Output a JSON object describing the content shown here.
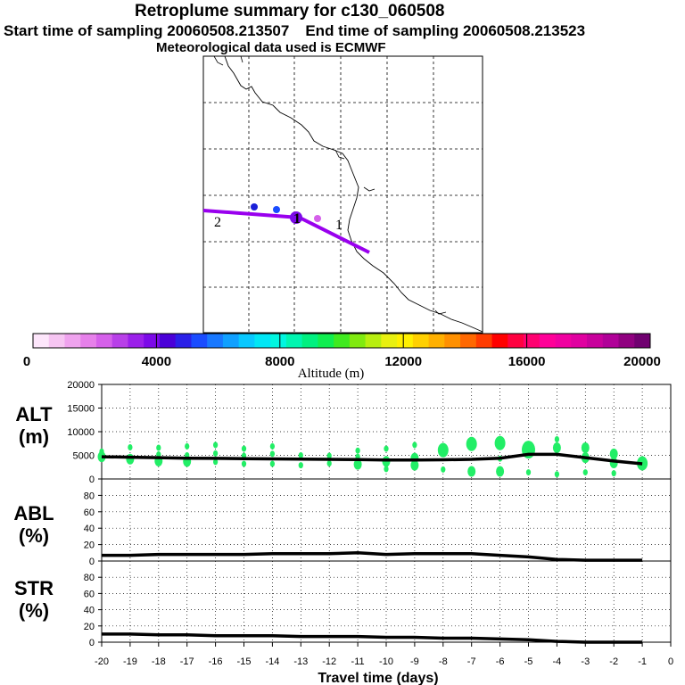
{
  "header": {
    "title": "Retroplume summary for c130_060508",
    "start_label": "Start time of sampling 20060508.213507",
    "end_label": "End time of sampling 20060508.213523",
    "met_label": "Meteorological data used is ECMWF"
  },
  "colors": {
    "plume_line": "#9900ee",
    "scatter_green": "#22ee66",
    "mean_line": "#000000"
  },
  "map": {
    "markers": [
      {
        "label": "2",
        "kind": "text"
      },
      {
        "label": "1",
        "kind": "text"
      },
      {
        "label": "1",
        "kind": "text"
      },
      {
        "label": "1",
        "kind": "text"
      }
    ]
  },
  "colorbar": {
    "ticks": [
      "0",
      "4000",
      "8000",
      "12000",
      "16000",
      "20000"
    ],
    "label": "Altitude (m)",
    "colors": [
      "#fde6fb",
      "#f6c5f2",
      "#efa3ee",
      "#e680ea",
      "#d560ea",
      "#b840e8",
      "#9b20ea",
      "#7c0ae8",
      "#4a00d8",
      "#2a20e8",
      "#1a4cff",
      "#1878ff",
      "#10a0ff",
      "#08c8ff",
      "#00e6f5",
      "#00f6e0",
      "#00f5b0",
      "#00f080",
      "#10ee50",
      "#40ea20",
      "#80ea10",
      "#b8ee10",
      "#e8f010",
      "#fff000",
      "#ffd000",
      "#ffb000",
      "#ff9000",
      "#ff6800",
      "#ff3c00",
      "#ff0000",
      "#ff0040",
      "#ff0070",
      "#ff0098",
      "#f000a0",
      "#e000a0",
      "#c8009c",
      "#b00098",
      "#900080",
      "#700070"
    ]
  },
  "chart_data": [
    {
      "type": "scatter",
      "panel": "ALT",
      "ylabel": "ALT\n(m)",
      "ylabel_lines": [
        "ALT",
        "(m)"
      ],
      "ylim": [
        0,
        20000
      ],
      "yticks": [
        "0",
        "5000",
        "10000",
        "15000",
        "20000"
      ],
      "mean_series": {
        "x": [
          -20,
          -19,
          -18,
          -17,
          -16,
          -15,
          -14,
          -13,
          -12,
          -11,
          -10,
          -9,
          -8,
          -7,
          -6,
          -5,
          -4,
          -3,
          -2,
          -1
        ],
        "y": [
          4700,
          4600,
          4500,
          4400,
          4350,
          4300,
          4250,
          4200,
          4150,
          4100,
          4000,
          4000,
          4050,
          4150,
          4400,
          5200,
          5200,
          4500,
          3800,
          3200
        ]
      },
      "points": [
        {
          "x": -20,
          "y": 4700,
          "size": "m"
        },
        {
          "x": -20,
          "y": 5800,
          "size": "s"
        },
        {
          "x": -19,
          "y": 4200,
          "size": "m"
        },
        {
          "x": -19,
          "y": 6700,
          "size": "s"
        },
        {
          "x": -18,
          "y": 3800,
          "size": "m"
        },
        {
          "x": -18,
          "y": 5200,
          "size": "s"
        },
        {
          "x": -18,
          "y": 6600,
          "size": "s"
        },
        {
          "x": -17,
          "y": 3700,
          "size": "m"
        },
        {
          "x": -17,
          "y": 5000,
          "size": "s"
        },
        {
          "x": -17,
          "y": 6900,
          "size": "s"
        },
        {
          "x": -16,
          "y": 3600,
          "size": "s"
        },
        {
          "x": -16,
          "y": 5400,
          "size": "s"
        },
        {
          "x": -16,
          "y": 7200,
          "size": "s"
        },
        {
          "x": -15,
          "y": 3200,
          "size": "s"
        },
        {
          "x": -15,
          "y": 4900,
          "size": "s"
        },
        {
          "x": -15,
          "y": 6400,
          "size": "s"
        },
        {
          "x": -14,
          "y": 3200,
          "size": "s"
        },
        {
          "x": -14,
          "y": 5300,
          "size": "s"
        },
        {
          "x": -14,
          "y": 6900,
          "size": "s"
        },
        {
          "x": -13,
          "y": 2900,
          "size": "s"
        },
        {
          "x": -13,
          "y": 5000,
          "size": "s"
        },
        {
          "x": -12,
          "y": 3300,
          "size": "s"
        },
        {
          "x": -12,
          "y": 4900,
          "size": "s"
        },
        {
          "x": -11,
          "y": 3100,
          "size": "m"
        },
        {
          "x": -11,
          "y": 4700,
          "size": "s"
        },
        {
          "x": -11,
          "y": 6000,
          "size": "s"
        },
        {
          "x": -10,
          "y": 2100,
          "size": "s"
        },
        {
          "x": -10,
          "y": 3700,
          "size": "m"
        },
        {
          "x": -10,
          "y": 6400,
          "size": "s"
        },
        {
          "x": -9,
          "y": 2900,
          "size": "m"
        },
        {
          "x": -9,
          "y": 4400,
          "size": "m"
        },
        {
          "x": -9,
          "y": 7200,
          "size": "s"
        },
        {
          "x": -8,
          "y": 2000,
          "size": "s"
        },
        {
          "x": -8,
          "y": 6100,
          "size": "l"
        },
        {
          "x": -7,
          "y": 1600,
          "size": "m"
        },
        {
          "x": -7,
          "y": 7400,
          "size": "l"
        },
        {
          "x": -6,
          "y": 1600,
          "size": "m"
        },
        {
          "x": -6,
          "y": 4300,
          "size": "s"
        },
        {
          "x": -6,
          "y": 7600,
          "size": "l"
        },
        {
          "x": -5,
          "y": 1400,
          "size": "s"
        },
        {
          "x": -5,
          "y": 6200,
          "size": "xl"
        },
        {
          "x": -4,
          "y": 1000,
          "size": "s"
        },
        {
          "x": -4,
          "y": 6600,
          "size": "m"
        },
        {
          "x": -4,
          "y": 8400,
          "size": "s"
        },
        {
          "x": -3,
          "y": 1400,
          "size": "s"
        },
        {
          "x": -3,
          "y": 4500,
          "size": "m"
        },
        {
          "x": -3,
          "y": 6600,
          "size": "m"
        },
        {
          "x": -2,
          "y": 1200,
          "size": "s"
        },
        {
          "x": -2,
          "y": 3400,
          "size": "m"
        },
        {
          "x": -2,
          "y": 5300,
          "size": "m"
        },
        {
          "x": -1,
          "y": 3300,
          "size": "l"
        }
      ]
    },
    {
      "type": "line",
      "panel": "ABL",
      "ylabel": "ABL\n(%)",
      "ylabel_lines": [
        "ABL",
        "(%)"
      ],
      "ylim": [
        0,
        100
      ],
      "yticks": [
        "0",
        "20",
        "40",
        "60",
        "80"
      ],
      "x": [
        -20,
        -19,
        -18,
        -17,
        -16,
        -15,
        -14,
        -13,
        -12,
        -11,
        -10,
        -9,
        -8,
        -7,
        -6,
        -5,
        -4,
        -3,
        -2,
        -1
      ],
      "y": [
        7,
        7,
        8,
        8,
        8,
        8,
        9,
        9,
        9,
        10,
        8,
        9,
        9,
        9,
        7,
        5,
        2,
        1,
        1,
        1
      ]
    },
    {
      "type": "line",
      "panel": "STR",
      "ylabel": "STR\n(%)",
      "ylabel_lines": [
        "STR",
        "(%)"
      ],
      "ylim": [
        0,
        100
      ],
      "yticks": [
        "0",
        "20",
        "40",
        "60",
        "80"
      ],
      "x": [
        -20,
        -19,
        -18,
        -17,
        -16,
        -15,
        -14,
        -13,
        -12,
        -11,
        -10,
        -9,
        -8,
        -7,
        -6,
        -5,
        -4,
        -3,
        -2,
        -1
      ],
      "y": [
        10,
        10,
        9,
        9,
        8,
        8,
        8,
        7,
        7,
        7,
        6,
        6,
        5,
        5,
        4,
        3,
        1,
        0,
        0,
        0
      ]
    },
    {
      "type": "axis",
      "xlabel": "Travel time (days)",
      "xlim": [
        -20,
        0
      ],
      "xticks": [
        "-20",
        "-19",
        "-18",
        "-17",
        "-16",
        "-15",
        "-14",
        "-13",
        "-12",
        "-11",
        "-10",
        "-9",
        "-8",
        "-7",
        "-6",
        "-5",
        "-4",
        "-3",
        "-2",
        "-1",
        "0"
      ]
    }
  ]
}
